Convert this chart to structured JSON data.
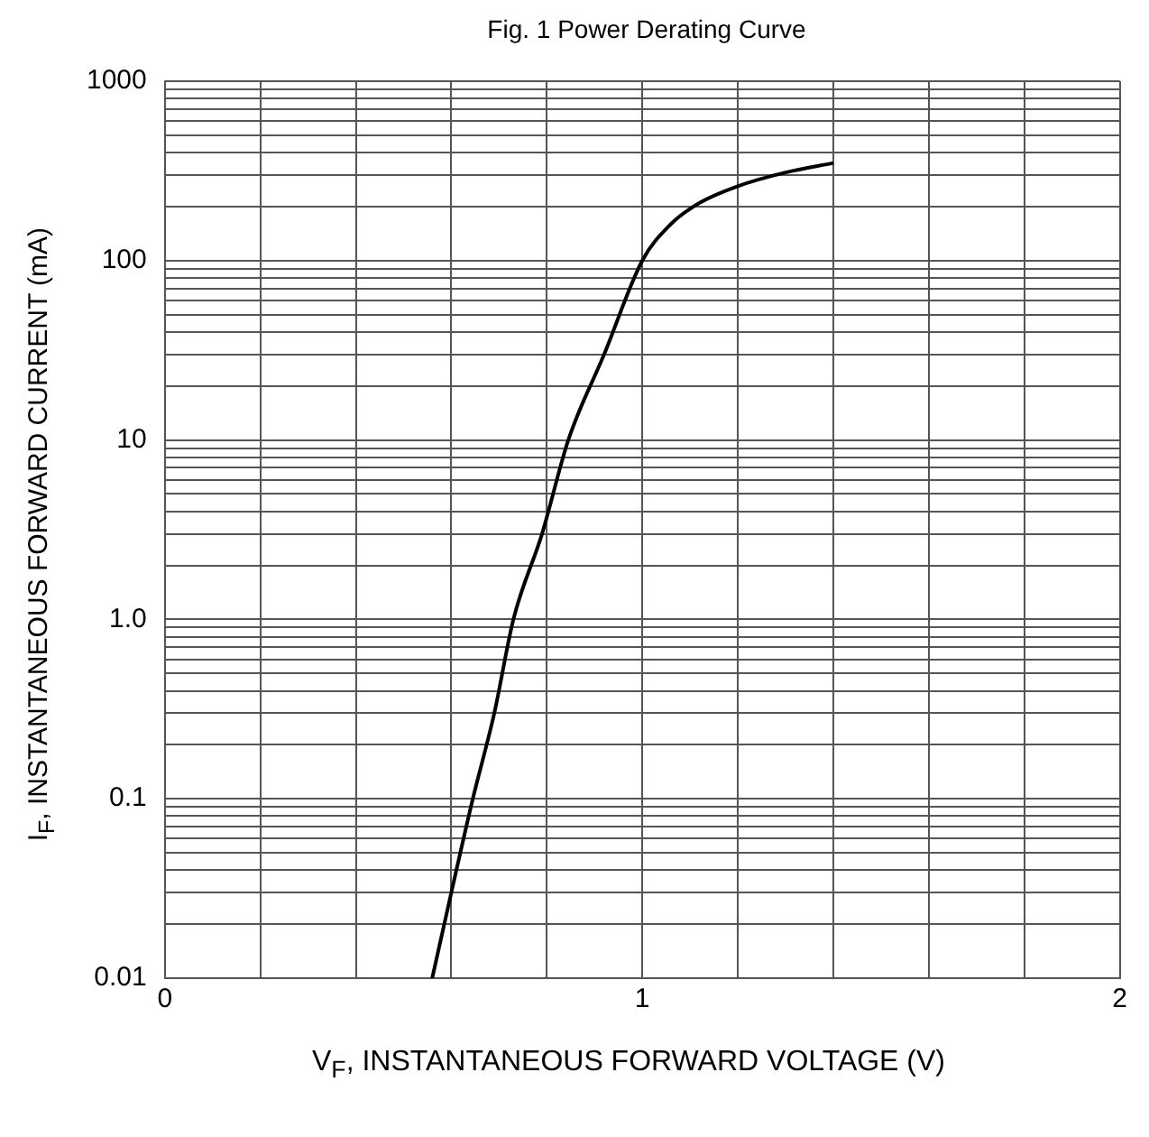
{
  "chart_data": {
    "type": "line",
    "title": "Fig. 1  Power Derating Curve",
    "xlabel": "V$_{F}$, INSTANTANEOUS FORWARD VOLTAGE (V)",
    "ylabel": "I$_{F}$, INSTANTANEOUS FORWARD CURRENT (mA)",
    "log": "y",
    "grid": true,
    "legend": false,
    "marker": "none",
    "line_style": "solid",
    "xlim": [
      0,
      2
    ],
    "ylim": [
      0.01,
      1000
    ],
    "xticks": [
      0,
      {
        "value": 0.2,
        "label": null
      },
      {
        "value": 0.4,
        "label": null
      },
      {
        "value": 0.6,
        "label": null
      },
      {
        "value": 0.8,
        "label": null
      },
      1,
      {
        "value": 1.2,
        "label": null
      },
      {
        "value": 1.4,
        "label": null
      },
      {
        "value": 1.6,
        "label": null
      },
      {
        "value": 1.8,
        "label": null
      },
      2
    ],
    "yticks": [
      0.01,
      {
        "value": 0.02,
        "label": null
      },
      {
        "value": 0.03,
        "label": null
      },
      {
        "value": 0.04,
        "label": null
      },
      {
        "value": 0.05,
        "label": null
      },
      {
        "value": 0.06,
        "label": null
      },
      {
        "value": 0.07,
        "label": null
      },
      {
        "value": 0.08,
        "label": null
      },
      {
        "value": 0.09,
        "label": null
      },
      0.1,
      {
        "value": 0.2,
        "label": null
      },
      {
        "value": 0.3,
        "label": null
      },
      {
        "value": 0.4,
        "label": null
      },
      {
        "value": 0.5,
        "label": null
      },
      {
        "value": 0.6,
        "label": null
      },
      {
        "value": 0.7,
        "label": null
      },
      {
        "value": 0.8,
        "label": null
      },
      {
        "value": 0.9,
        "label": null
      },
      {
        "value": 1,
        "label": "1.0"
      },
      {
        "value": 2,
        "label": null
      },
      {
        "value": 3,
        "label": null
      },
      {
        "value": 4,
        "label": null
      },
      {
        "value": 5,
        "label": null
      },
      {
        "value": 6,
        "label": null
      },
      {
        "value": 7,
        "label": null
      },
      {
        "value": 8,
        "label": null
      },
      {
        "value": 9,
        "label": null
      },
      10,
      {
        "value": 20,
        "label": null
      },
      {
        "value": 30,
        "label": null
      },
      {
        "value": 40,
        "label": null
      },
      {
        "value": 50,
        "label": null
      },
      {
        "value": 60,
        "label": null
      },
      {
        "value": 70,
        "label": null
      },
      {
        "value": 80,
        "label": null
      },
      {
        "value": 90,
        "label": null
      },
      100,
      {
        "value": 200,
        "label": null
      },
      {
        "value": 300,
        "label": null
      },
      {
        "value": 400,
        "label": null
      },
      {
        "value": 500,
        "label": null
      },
      {
        "value": 600,
        "label": null
      },
      {
        "value": 700,
        "label": null
      },
      {
        "value": 800,
        "label": null
      },
      {
        "value": 900,
        "label": null
      },
      1000
    ],
    "series": [
      {
        "color": "#000000",
        "x": [
          0.56,
          0.6,
          0.645,
          0.69,
          0.73,
          0.79,
          0.845,
          0.92,
          1.0,
          1.06,
          1.12,
          1.2,
          1.3,
          1.4
        ],
        "values": [
          0.01,
          0.03,
          0.1,
          0.3,
          1,
          3,
          10,
          30,
          100,
          160,
          210,
          260,
          310,
          350
        ]
      }
    ]
  }
}
